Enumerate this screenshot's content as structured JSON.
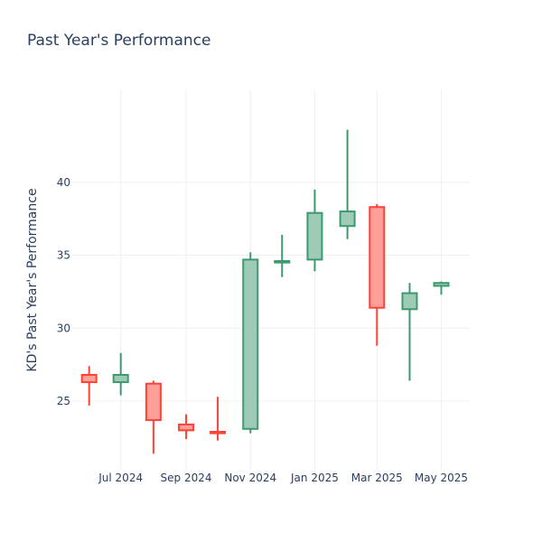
{
  "chart_data": {
    "type": "candlestick",
    "title": "Past Year's Performance",
    "ylabel": "KD's Past Year's Performance",
    "xlabel": "",
    "ylim": [
      20.3,
      46.3
    ],
    "y_ticks": [
      25,
      30,
      35,
      40
    ],
    "x_range": [
      "2024-05-16",
      "2025-05-28"
    ],
    "x_ticks": [
      {
        "date": "2024-07-01",
        "label": "Jul 2024"
      },
      {
        "date": "2024-09-01",
        "label": "Sep 2024"
      },
      {
        "date": "2024-11-01",
        "label": "Nov 2024"
      },
      {
        "date": "2025-01-01",
        "label": "Jan 2025"
      },
      {
        "date": "2025-03-01",
        "label": "Mar 2025"
      },
      {
        "date": "2025-05-01",
        "label": "May 2025"
      }
    ],
    "colors": {
      "increasing_line": "#3d9970",
      "increasing_fill": "#9ecbb5",
      "decreasing_line": "#ff4136",
      "decreasing_fill": "#ff9f9a",
      "grid": "#eef0f4",
      "text": "#2a3f5f"
    },
    "candles": [
      {
        "date": "2024-06-01",
        "open": 26.8,
        "high": 27.4,
        "low": 24.7,
        "close": 26.3
      },
      {
        "date": "2024-07-01",
        "open": 26.3,
        "high": 28.3,
        "low": 25.4,
        "close": 26.8
      },
      {
        "date": "2024-08-01",
        "open": 26.2,
        "high": 26.4,
        "low": 21.4,
        "close": 23.7
      },
      {
        "date": "2024-09-01",
        "open": 23.4,
        "high": 24.1,
        "low": 22.4,
        "close": 23.0
      },
      {
        "date": "2024-10-01",
        "open": 22.9,
        "high": 25.3,
        "low": 22.3,
        "close": 22.8
      },
      {
        "date": "2024-11-01",
        "open": 23.1,
        "high": 35.2,
        "low": 22.8,
        "close": 34.7
      },
      {
        "date": "2024-12-01",
        "open": 34.5,
        "high": 36.4,
        "low": 33.5,
        "close": 34.6
      },
      {
        "date": "2025-01-01",
        "open": 34.7,
        "high": 39.5,
        "low": 33.9,
        "close": 37.9
      },
      {
        "date": "2025-02-01",
        "open": 37.0,
        "high": 43.6,
        "low": 36.1,
        "close": 38.0
      },
      {
        "date": "2025-03-01",
        "open": 38.3,
        "high": 38.5,
        "low": 28.8,
        "close": 31.4
      },
      {
        "date": "2025-04-01",
        "open": 31.3,
        "high": 33.1,
        "low": 26.4,
        "close": 32.4
      },
      {
        "date": "2025-05-01",
        "open": 32.9,
        "high": 33.2,
        "low": 32.3,
        "close": 33.1
      }
    ]
  }
}
